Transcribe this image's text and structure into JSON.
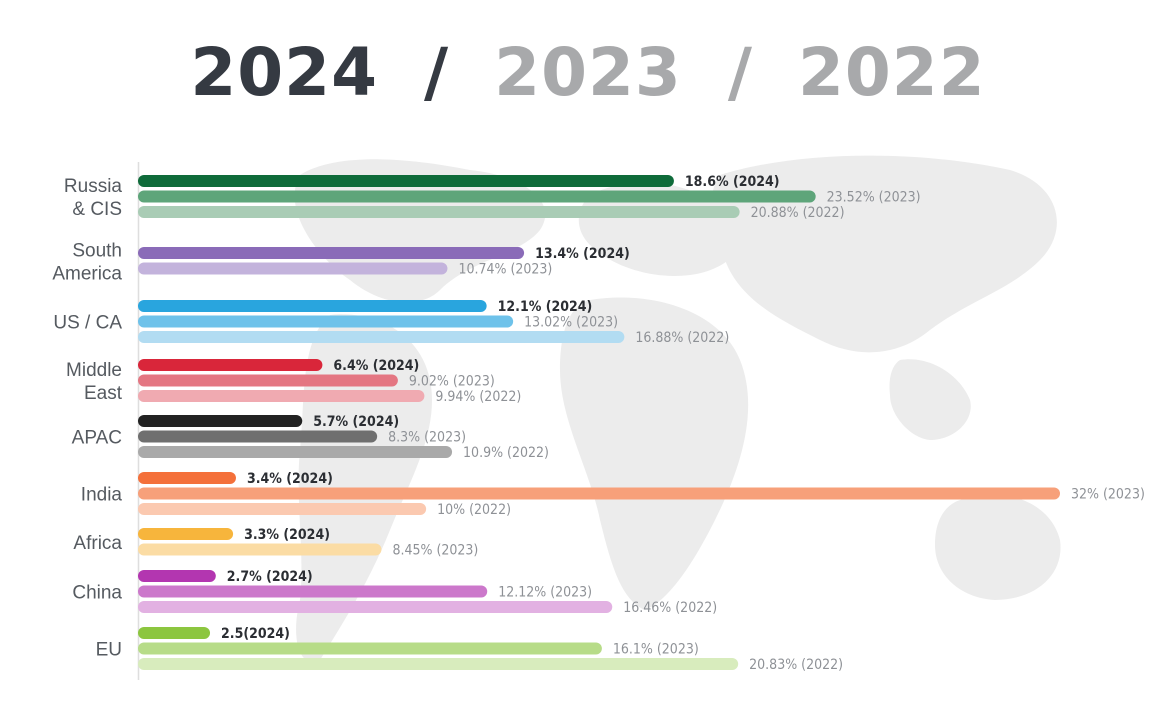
{
  "header": {
    "years": [
      {
        "label": "2024",
        "active": true
      },
      {
        "label": "2023",
        "active": false
      },
      {
        "label": "2022",
        "active": false
      }
    ],
    "separator": "/"
  },
  "chart_data": {
    "type": "bar",
    "orientation": "horizontal",
    "title": "",
    "xlim": [
      0,
      32
    ],
    "grid": false,
    "legend": "none",
    "categories": [
      "Russia & CIS",
      "South America",
      "US / CA",
      "Middle East",
      "APAC",
      "India",
      "Africa",
      "China",
      "EU"
    ],
    "category_lines": [
      [
        "Russia",
        "& CIS"
      ],
      [
        "South",
        "America"
      ],
      [
        "US / CA"
      ],
      [
        "Middle",
        "East"
      ],
      [
        "APAC"
      ],
      [
        "India"
      ],
      [
        "Africa"
      ],
      [
        "China"
      ],
      [
        "EU"
      ]
    ],
    "groups": [
      {
        "category": "Russia & CIS",
        "bars": [
          {
            "year": "2024",
            "value": 18.6,
            "label": "18.6% (2024)",
            "color": "#0f6b3a"
          },
          {
            "year": "2023",
            "value": 23.52,
            "label": "23.52% (2023)",
            "color": "#5ea57a"
          },
          {
            "year": "2022",
            "value": 20.88,
            "label": "20.88% (2022)",
            "color": "#a9ccb5"
          }
        ]
      },
      {
        "category": "South America",
        "bars": [
          {
            "year": "2024",
            "value": 13.4,
            "label": "13.4% (2024)",
            "color": "#8a6bb8"
          },
          {
            "year": "2023",
            "value": 10.74,
            "label": "10.74% (2023)",
            "color": "#c3b3dc"
          }
        ]
      },
      {
        "category": "US / CA",
        "bars": [
          {
            "year": "2024",
            "value": 12.1,
            "label": "12.1% (2024)",
            "color": "#29a5de"
          },
          {
            "year": "2023",
            "value": 13.02,
            "label": "13.02% (2023)",
            "color": "#6ec2ea"
          },
          {
            "year": "2022",
            "value": 16.88,
            "label": "16.88% (2022)",
            "color": "#b2dcf2"
          }
        ]
      },
      {
        "category": "Middle East",
        "bars": [
          {
            "year": "2024",
            "value": 6.4,
            "label": "6.4% (2024)",
            "color": "#d9263a"
          },
          {
            "year": "2023",
            "value": 9.02,
            "label": "9.02% (2023)",
            "color": "#e47682"
          },
          {
            "year": "2022",
            "value": 9.94,
            "label": "9.94% (2022)",
            "color": "#f0aab1"
          }
        ]
      },
      {
        "category": "APAC",
        "bars": [
          {
            "year": "2024",
            "value": 5.7,
            "label": "5.7% (2024)",
            "color": "#222222"
          },
          {
            "year": "2023",
            "value": 8.3,
            "label": "8.3% (2023)",
            "color": "#6f6f6f"
          },
          {
            "year": "2022",
            "value": 10.9,
            "label": "10.9% (2022)",
            "color": "#a9a9a9"
          }
        ]
      },
      {
        "category": "India",
        "bars": [
          {
            "year": "2024",
            "value": 3.4,
            "label": "3.4% (2024)",
            "color": "#f4703a"
          },
          {
            "year": "2023",
            "value": 32,
            "label": "32% (2023)",
            "color": "#f7a07a"
          },
          {
            "year": "2022",
            "value": 10,
            "label": "10% (2022)",
            "color": "#fbc9b0"
          }
        ]
      },
      {
        "category": "Africa",
        "bars": [
          {
            "year": "2024",
            "value": 3.3,
            "label": "3.3% (2024)",
            "color": "#f7b53c"
          },
          {
            "year": "2023",
            "value": 8.45,
            "label": "8.45% (2023)",
            "color": "#fbdca4"
          }
        ]
      },
      {
        "category": "China",
        "bars": [
          {
            "year": "2024",
            "value": 2.7,
            "label": "2.7% (2024)",
            "color": "#b336b0"
          },
          {
            "year": "2023",
            "value": 12.12,
            "label": "12.12% (2023)",
            "color": "#cc78cb"
          },
          {
            "year": "2022",
            "value": 16.46,
            "label": "16.46% (2022)",
            "color": "#e2b1e2"
          }
        ]
      },
      {
        "category": "EU",
        "bars": [
          {
            "year": "2024",
            "value": 2.5,
            "label": "2.5(2024)",
            "color": "#8cc63f"
          },
          {
            "year": "2023",
            "value": 16.1,
            "label": "16.1% (2023)",
            "color": "#b7dc88"
          },
          {
            "year": "2022",
            "value": 20.83,
            "label": "20.83% (2022)",
            "color": "#d8ecbd"
          }
        ]
      }
    ]
  }
}
